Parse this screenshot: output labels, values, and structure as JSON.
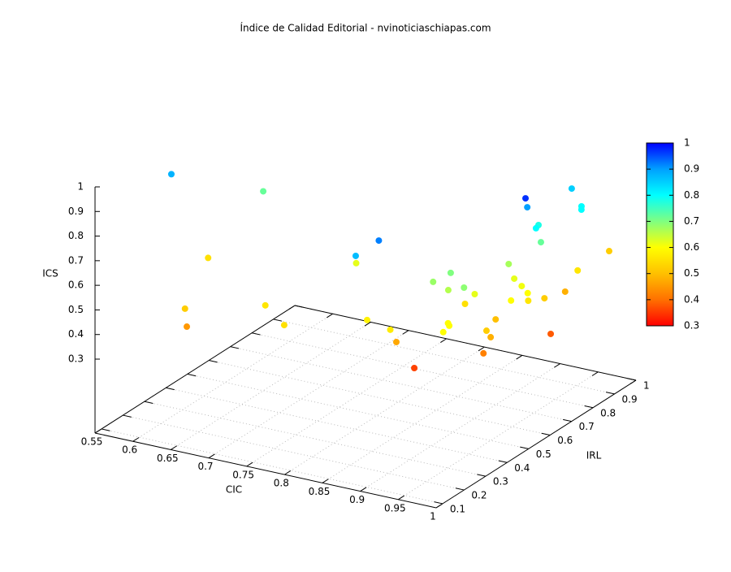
{
  "chart_data": {
    "type": "scatter3d",
    "title": "Índice de Calidad Editorial - nvinoticiaschiapas.com",
    "xlabel": "CIC",
    "ylabel": "IRL",
    "zlabel": "ICS",
    "xlim": [
      0.55,
      1
    ],
    "ylim": [
      0.07,
      1
    ],
    "zlim": [
      0.3,
      1
    ],
    "cblim": [
      0.3,
      1
    ],
    "xticks": [
      0.55,
      0.6,
      0.65,
      0.7,
      0.75,
      0.8,
      0.85,
      0.9,
      0.95,
      1
    ],
    "yticks": [
      0.1,
      0.2,
      0.3,
      0.4,
      0.5,
      0.6,
      0.7,
      0.8,
      0.9,
      1
    ],
    "zticks": [
      0.3,
      0.4,
      0.5,
      0.6,
      0.7,
      0.8,
      0.9,
      1
    ],
    "cbticks": [
      0.3,
      0.4,
      0.5,
      0.6,
      0.7,
      0.8,
      0.9,
      1
    ],
    "palette": [
      "#ff0000",
      "#ff7000",
      "#ffc000",
      "#ffff00",
      "#80ff80",
      "#00ffff",
      "#00a0ff",
      "#0000ff"
    ],
    "grid": true,
    "x": [
      0.56,
      0.616,
      0.6,
      0.644,
      0.647,
      0.733,
      0.778,
      0.863,
      0.881,
      0.78,
      0.863,
      0.897,
      0.884,
      0.9,
      0.907,
      0.918,
      0.927,
      0.95,
      0.944,
      0.923,
      0.955,
      0.96,
      0.964,
      0.974,
      0.973,
      0.958,
      0.968,
      0.979,
      0.968,
      0.964,
      0.982,
      0.987,
      0.961,
      0.971,
      0.967,
      0.95,
      0.959,
      0.974,
      0.987,
      0.982,
      0.984,
      0.981,
      0.986,
      0.976,
      0.972,
      0.989
    ],
    "y": [
      0.39,
      0.62,
      0.42,
      0.157,
      0.155,
      0.217,
      0.146,
      0.179,
      0.223,
      0.474,
      0.232,
      0.22,
      0.294,
      0.321,
      0.384,
      0.427,
      0.384,
      0.376,
      0.447,
      0.476,
      0.284,
      0.272,
      0.23,
      0.396,
      0.419,
      0.495,
      0.403,
      0.56,
      0.607,
      0.828,
      0.81,
      0.792,
      0.684,
      0.637,
      0.674,
      0.584,
      0.578,
      0.56,
      0.542,
      0.482,
      0.555,
      0.641,
      0.778,
      0.755,
      0.974,
      0.642
    ],
    "z": [
      0.88,
      0.72,
      0.55,
      0.52,
      0.45,
      0.56,
      0.55,
      0.87,
      0.92,
      0.62,
      0.58,
      0.57,
      0.47,
      0.36,
      0.68,
      0.7,
      0.66,
      0.69,
      0.62,
      0.55,
      0.6,
      0.6,
      0.6,
      0.52,
      0.48,
      0.5,
      0.42,
      0.97,
      0.9,
      0.85,
      0.8,
      0.8,
      0.78,
      0.8,
      0.72,
      0.67,
      0.62,
      0.61,
      0.6,
      0.6,
      0.56,
      0.52,
      0.56,
      0.48,
      0.52,
      0.38
    ]
  }
}
